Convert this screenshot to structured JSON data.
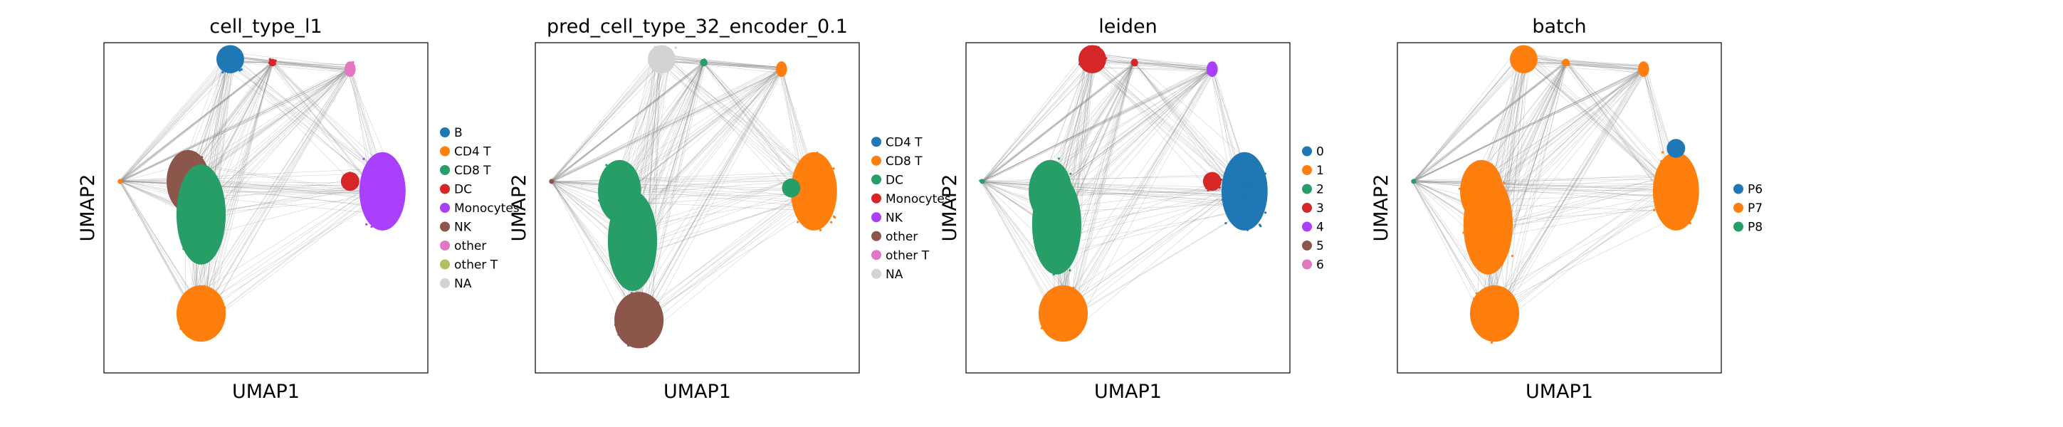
{
  "palette": {
    "blue": "#1f77b4",
    "orange": "#ff7f0e",
    "green": "#279e68",
    "red": "#d62728",
    "purple": "#aa40fc",
    "brown": "#8c564b",
    "pink": "#e377c2",
    "olive": "#b5bd61",
    "lightgray": "#d3d3d3",
    "edge": "#808080"
  },
  "chart_data": [
    {
      "type": "scatter",
      "title": "cell_type_l1",
      "xlabel": "UMAP1",
      "ylabel": "UMAP2",
      "grid": false,
      "legend": {
        "placement": "right",
        "entries": [
          {
            "label": "B",
            "color": "#1f77b4"
          },
          {
            "label": "CD4 T",
            "color": "#ff7f0e"
          },
          {
            "label": "CD8 T",
            "color": "#279e68"
          },
          {
            "label": "DC",
            "color": "#d62728"
          },
          {
            "label": "Monocytes",
            "color": "#aa40fc"
          },
          {
            "label": "NK",
            "color": "#8c564b"
          },
          {
            "label": "other",
            "color": "#e377c2"
          },
          {
            "label": "other T",
            "color": "#b5bd61"
          },
          {
            "label": "NA",
            "color": "#d3d3d3"
          }
        ]
      },
      "clusters": [
        {
          "name": "top",
          "x": 0.39,
          "y": 0.95,
          "color": "#1f77b4"
        },
        {
          "name": "top-small-1",
          "x": 0.52,
          "y": 0.94,
          "color": "#d62728"
        },
        {
          "name": "top-right",
          "x": 0.76,
          "y": 0.92,
          "color": "#e377c2"
        },
        {
          "name": "right",
          "x": 0.86,
          "y": 0.55,
          "color": "#aa40fc"
        },
        {
          "name": "right-edge",
          "x": 0.76,
          "y": 0.58,
          "color": "#d62728"
        },
        {
          "name": "left",
          "x": 0.26,
          "y": 0.58,
          "color": "#8c564b"
        },
        {
          "name": "left-mix",
          "x": 0.3,
          "y": 0.48,
          "color": "#279e68"
        },
        {
          "name": "bottom",
          "x": 0.3,
          "y": 0.18,
          "color": "#ff7f0e"
        },
        {
          "name": "left-tip",
          "x": 0.05,
          "y": 0.58,
          "color": "#ff7f0e"
        }
      ]
    },
    {
      "type": "scatter",
      "title": "pred_cell_type_32_encoder_0.1",
      "xlabel": "UMAP1",
      "ylabel": "UMAP2",
      "grid": false,
      "legend": {
        "placement": "right",
        "entries": [
          {
            "label": "CD4 T",
            "color": "#1f77b4"
          },
          {
            "label": "CD8 T",
            "color": "#ff7f0e"
          },
          {
            "label": "DC",
            "color": "#279e68"
          },
          {
            "label": "Monocytes",
            "color": "#d62728"
          },
          {
            "label": "NK",
            "color": "#aa40fc"
          },
          {
            "label": "other",
            "color": "#8c564b"
          },
          {
            "label": "other T",
            "color": "#e377c2"
          },
          {
            "label": "NA",
            "color": "#d3d3d3"
          }
        ]
      },
      "clusters": [
        {
          "name": "top",
          "x": 0.39,
          "y": 0.95,
          "color": "#d3d3d3"
        },
        {
          "name": "top-small-1",
          "x": 0.52,
          "y": 0.94,
          "color": "#279e68"
        },
        {
          "name": "top-right",
          "x": 0.76,
          "y": 0.92,
          "color": "#ff7f0e"
        },
        {
          "name": "right",
          "x": 0.86,
          "y": 0.55,
          "color": "#ff7f0e"
        },
        {
          "name": "right-edge",
          "x": 0.79,
          "y": 0.56,
          "color": "#279e68"
        },
        {
          "name": "left",
          "x": 0.26,
          "y": 0.55,
          "color": "#279e68"
        },
        {
          "name": "left-mix",
          "x": 0.3,
          "y": 0.4,
          "color": "#279e68"
        },
        {
          "name": "bottom",
          "x": 0.32,
          "y": 0.16,
          "color": "#8c564b"
        },
        {
          "name": "left-tip",
          "x": 0.05,
          "y": 0.58,
          "color": "#8c564b"
        }
      ]
    },
    {
      "type": "scatter",
      "title": "leiden",
      "xlabel": "UMAP1",
      "ylabel": "UMAP2",
      "grid": false,
      "legend": {
        "placement": "right",
        "entries": [
          {
            "label": "0",
            "color": "#1f77b4"
          },
          {
            "label": "1",
            "color": "#ff7f0e"
          },
          {
            "label": "2",
            "color": "#279e68"
          },
          {
            "label": "3",
            "color": "#d62728"
          },
          {
            "label": "4",
            "color": "#aa40fc"
          },
          {
            "label": "5",
            "color": "#8c564b"
          },
          {
            "label": "6",
            "color": "#e377c2"
          }
        ]
      },
      "clusters": [
        {
          "name": "top",
          "x": 0.39,
          "y": 0.95,
          "color": "#d62728"
        },
        {
          "name": "top-small-1",
          "x": 0.52,
          "y": 0.94,
          "color": "#d62728"
        },
        {
          "name": "top-right",
          "x": 0.76,
          "y": 0.92,
          "color": "#aa40fc"
        },
        {
          "name": "right",
          "x": 0.86,
          "y": 0.55,
          "color": "#1f77b4"
        },
        {
          "name": "right-edge",
          "x": 0.76,
          "y": 0.58,
          "color": "#d62728"
        },
        {
          "name": "left",
          "x": 0.26,
          "y": 0.55,
          "color": "#279e68"
        },
        {
          "name": "left-mix",
          "x": 0.28,
          "y": 0.45,
          "color": "#279e68"
        },
        {
          "name": "bottom",
          "x": 0.3,
          "y": 0.18,
          "color": "#ff7f0e"
        },
        {
          "name": "left-tip",
          "x": 0.05,
          "y": 0.58,
          "color": "#279e68"
        }
      ]
    },
    {
      "type": "scatter",
      "title": "batch",
      "xlabel": "UMAP1",
      "ylabel": "UMAP2",
      "grid": false,
      "legend": {
        "placement": "right",
        "entries": [
          {
            "label": "P6",
            "color": "#1f77b4"
          },
          {
            "label": "P7",
            "color": "#ff7f0e"
          },
          {
            "label": "P8",
            "color": "#279e68"
          }
        ]
      },
      "clusters": [
        {
          "name": "top",
          "x": 0.39,
          "y": 0.95,
          "color": "#ff7f0e"
        },
        {
          "name": "top-small-1",
          "x": 0.52,
          "y": 0.94,
          "color": "#ff7f0e"
        },
        {
          "name": "top-right",
          "x": 0.76,
          "y": 0.92,
          "color": "#ff7f0e"
        },
        {
          "name": "right",
          "x": 0.86,
          "y": 0.55,
          "color": "#ff7f0e"
        },
        {
          "name": "right-edge",
          "x": 0.86,
          "y": 0.68,
          "color": "#1f77b4"
        },
        {
          "name": "left",
          "x": 0.26,
          "y": 0.55,
          "color": "#ff7f0e"
        },
        {
          "name": "left-mix",
          "x": 0.28,
          "y": 0.45,
          "color": "#ff7f0e"
        },
        {
          "name": "bottom",
          "x": 0.3,
          "y": 0.18,
          "color": "#ff7f0e"
        },
        {
          "name": "left-tip",
          "x": 0.05,
          "y": 0.58,
          "color": "#279e68"
        }
      ]
    }
  ]
}
